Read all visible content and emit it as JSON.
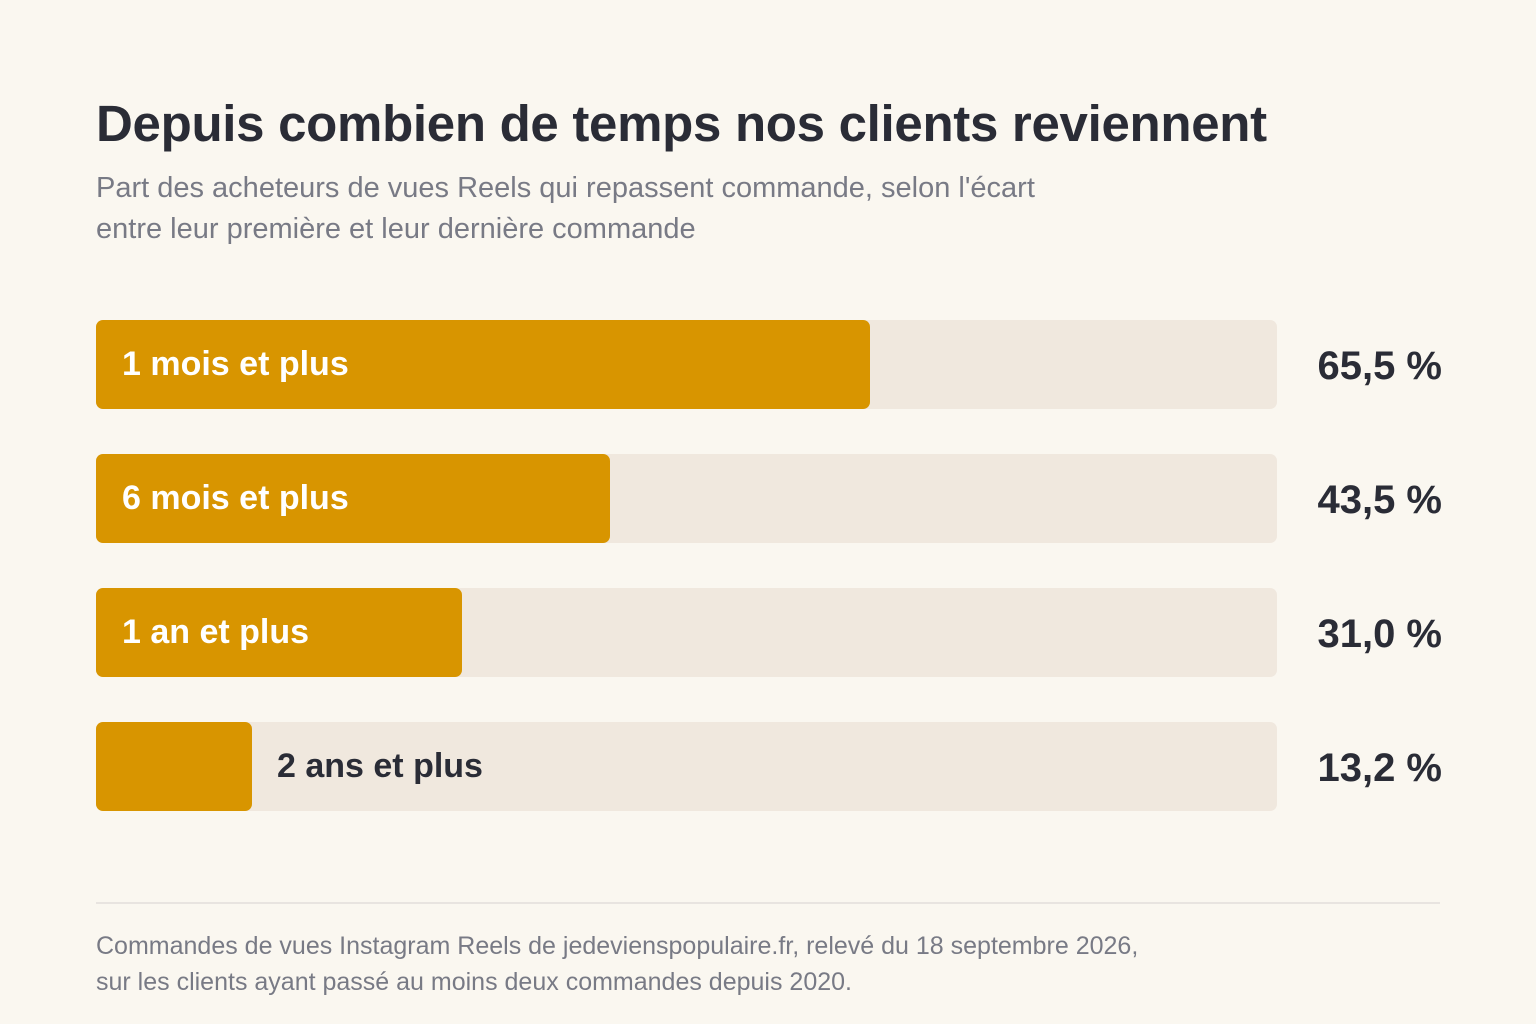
{
  "chart_data": {
    "type": "bar",
    "orientation": "horizontal",
    "title": "Depuis combien de temps nos clients reviennent",
    "subtitle": "Part des acheteurs de vues Reels qui repassent commande, selon l'écart\nentre leur première et leur dernière commande",
    "categories": [
      "1 mois et plus",
      "6 mois et plus",
      "1 an et plus",
      "2 ans et plus"
    ],
    "values": [
      65.5,
      43.5,
      31.0,
      13.2
    ],
    "value_labels": [
      "65,5 %",
      "43,5 %",
      "31,0 %",
      "13,2 %"
    ],
    "unit": "%",
    "xlim": [
      0,
      100
    ],
    "grid": false,
    "legend": "none",
    "colors": {
      "bar": "#d89500",
      "track": "#f0e8de",
      "label_on_bar": "#ffffff",
      "label_on_track": "#2a2c36"
    },
    "source": "Commandes de vues Instagram Reels de jedevienspopulaire.fr, relevé du 18 septembre 2026,\nsur les clients ayant passé au moins deux commandes depuis 2020."
  }
}
